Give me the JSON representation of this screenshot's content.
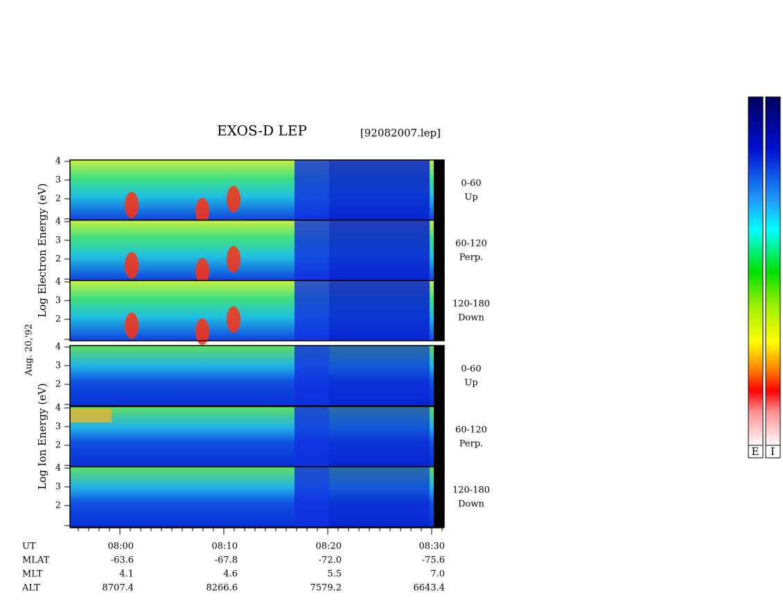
{
  "header": {
    "title": "EXOS-D LEP",
    "file": "[92082007.lep]"
  },
  "date": "Aug. 20,'92",
  "electron": {
    "y_label": "Log Electron Energy (eV)",
    "ticks": [
      4,
      3,
      2
    ],
    "panels": [
      {
        "range": "0-60",
        "direction": "Up"
      },
      {
        "range": "60-120",
        "direction": "Perp."
      },
      {
        "range": "120-180",
        "direction": "Down"
      }
    ]
  },
  "ion": {
    "y_label": "Log Ion Energy (eV)",
    "ticks": [
      4,
      3,
      2
    ],
    "panels": [
      {
        "range": "0-60",
        "direction": "Up"
      },
      {
        "range": "60-120",
        "direction": "Perp."
      },
      {
        "range": "120-180",
        "direction": "Down"
      }
    ]
  },
  "axis": {
    "rows": [
      {
        "label": "UT",
        "values": [
          "08:00",
          "08:10",
          "08:20",
          "08:30"
        ]
      },
      {
        "label": "MLAT",
        "values": [
          "-63.6",
          "-67.8",
          "-72.0",
          "-75.6"
        ]
      },
      {
        "label": "MLT",
        "values": [
          "4.1",
          "4.6",
          "5.5",
          "7.0"
        ]
      },
      {
        "label": "ALT",
        "values": [
          "8707.4",
          "8266.6",
          "7579.2",
          "6643.4"
        ]
      }
    ]
  },
  "colorbars": [
    "E",
    "I"
  ]
}
